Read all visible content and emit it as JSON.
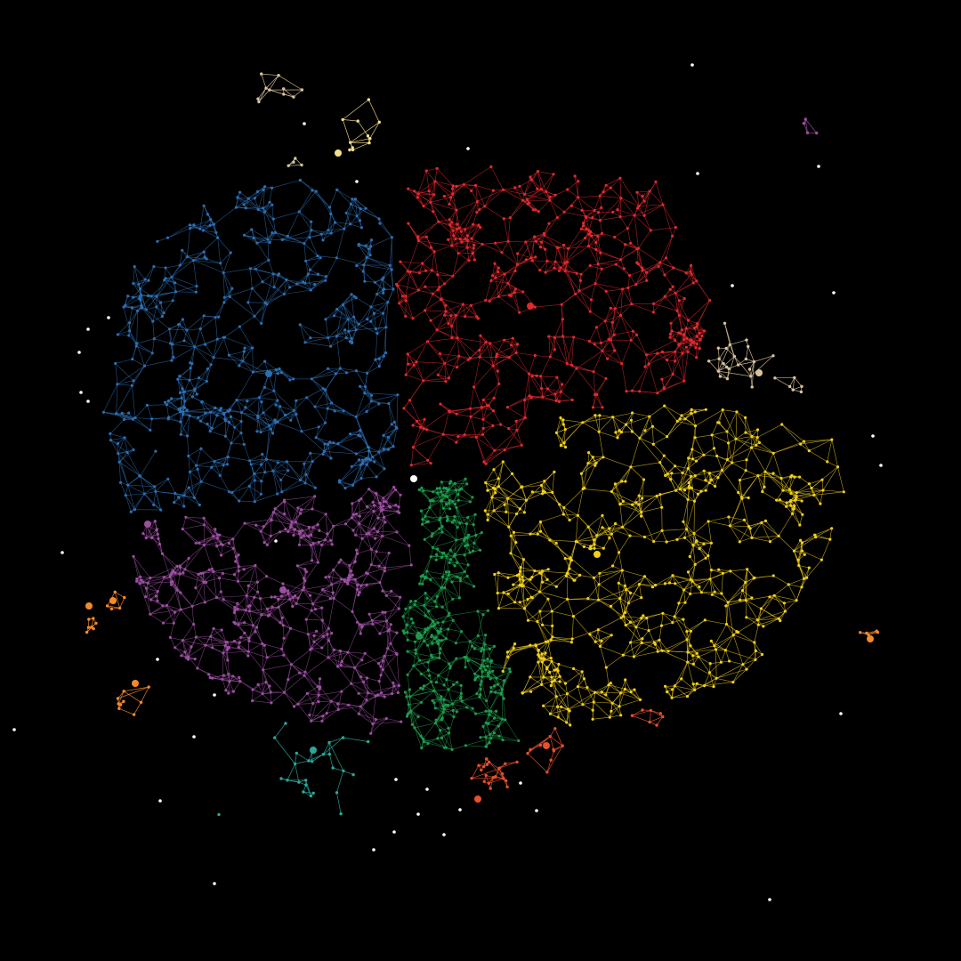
{
  "figure": {
    "type": "network-graph",
    "background": "#000000",
    "style": "force-directed layout, small node dots, thin edges colored by community",
    "labels_shown": false
  },
  "communities": [
    {
      "id": "blue",
      "color": "#2c6fb3",
      "role": "main cluster, upper-left"
    },
    {
      "id": "red",
      "color": "#e02a2e",
      "role": "main cluster, upper-right"
    },
    {
      "id": "yellow",
      "color": "#f2d01a",
      "role": "main cluster, right / lower-right"
    },
    {
      "id": "green",
      "color": "#1f9a4c",
      "role": "main cluster, lower-center"
    },
    {
      "id": "purple",
      "color": "#9b4fa0",
      "role": "main cluster, lower-left"
    },
    {
      "id": "orange",
      "color": "#f58a2a",
      "role": "small peripheral components, left"
    },
    {
      "id": "teal",
      "color": "#2aa89a",
      "role": "small peripheral component, bottom-left"
    },
    {
      "id": "coral",
      "color": "#e5502e",
      "role": "small peripheral component, bottom-center"
    },
    {
      "id": "tan",
      "color": "#d9c39a",
      "role": "small peripheral components, top and right"
    },
    {
      "id": "cream",
      "color": "#f5e08a",
      "role": "small peripheral component, top"
    },
    {
      "id": "white",
      "color": "#ffffff",
      "role": "isolated nodes scattered around the periphery"
    }
  ]
}
